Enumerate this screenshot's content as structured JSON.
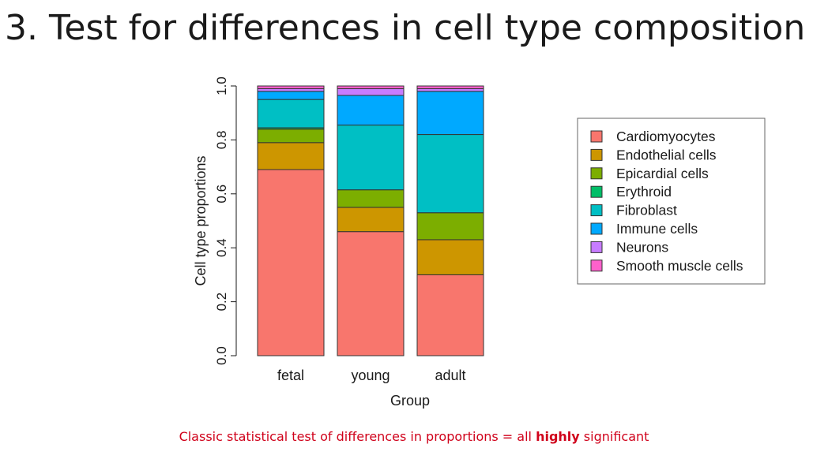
{
  "slide": {
    "title": "3. Test for differences in cell type composition",
    "footer_before": "Classic statistical test of differences in proportions = all ",
    "footer_bold": "highly",
    "footer_after": " significant"
  },
  "colors": {
    "footer_text": "#d0021b"
  },
  "chart_data": {
    "type": "bar",
    "stacked": true,
    "title": "",
    "xlabel": "Group",
    "ylabel": "Cell type proportions",
    "ylim": [
      0,
      1
    ],
    "yticks": [
      "0.0",
      "0.2",
      "0.4",
      "0.6",
      "0.8",
      "1.0"
    ],
    "categories": [
      "fetal",
      "young",
      "adult"
    ],
    "legend_position": "right",
    "series": [
      {
        "name": "Cardiomyocytes",
        "color": "#F8766D",
        "values": [
          0.69,
          0.46,
          0.3
        ]
      },
      {
        "name": "Endothelial cells",
        "color": "#CD9600",
        "values": [
          0.1,
          0.09,
          0.13
        ]
      },
      {
        "name": "Epicardial cells",
        "color": "#7CAE00",
        "values": [
          0.05,
          0.065,
          0.1
        ]
      },
      {
        "name": "Erythroid",
        "color": "#00BE67",
        "values": [
          0.005,
          0.0,
          0.0
        ]
      },
      {
        "name": "Fibroblast",
        "color": "#00BFC4",
        "values": [
          0.105,
          0.24,
          0.29
        ]
      },
      {
        "name": "Immune cells",
        "color": "#00A9FF",
        "values": [
          0.03,
          0.11,
          0.16
        ]
      },
      {
        "name": "Neurons",
        "color": "#C77CFF",
        "values": [
          0.01,
          0.025,
          0.01
        ]
      },
      {
        "name": "Smooth muscle cells",
        "color": "#FF61CC",
        "values": [
          0.01,
          0.01,
          0.01
        ]
      }
    ]
  }
}
